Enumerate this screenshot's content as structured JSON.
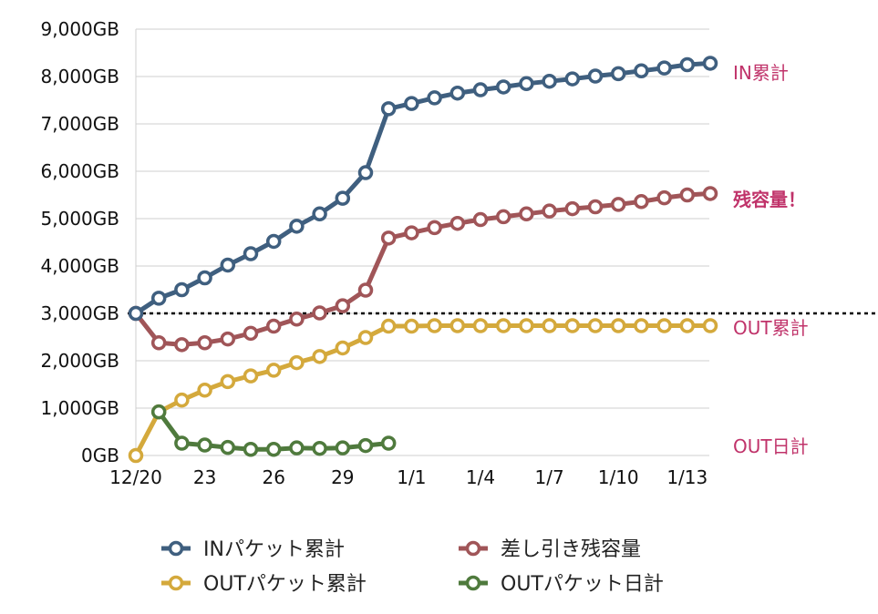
{
  "chart_data": {
    "type": "line",
    "y_tick_labels": [
      "0GB",
      "1,000GB",
      "2,000GB",
      "3,000GB",
      "4,000GB",
      "5,000GB",
      "6,000GB",
      "7,000GB",
      "8,000GB",
      "9,000GB"
    ],
    "ylim": [
      0,
      9000
    ],
    "x_tick_labels": [
      {
        "label": "12/20",
        "index": 0
      },
      {
        "label": "23",
        "index": 3
      },
      {
        "label": "26",
        "index": 6
      },
      {
        "label": "29",
        "index": 9
      },
      {
        "label": "1/1",
        "index": 12
      },
      {
        "label": "1/4",
        "index": 15
      },
      {
        "label": "1/7",
        "index": 18
      },
      {
        "label": "1/10",
        "index": 21
      },
      {
        "label": "1/13",
        "index": 24
      }
    ],
    "x_range": [
      0,
      25
    ],
    "grid": true,
    "reference_line": {
      "value": 3000,
      "style": "dotted"
    },
    "series": [
      {
        "name": "INパケット累計",
        "color": "#3f5f7f",
        "end_label": "IN累計",
        "end_label_color": "#c0336a",
        "values": [
          3000,
          3320,
          3500,
          3750,
          4020,
          4260,
          4520,
          4840,
          5100,
          5430,
          5970,
          7320,
          7430,
          7550,
          7650,
          7720,
          7780,
          7850,
          7900,
          7950,
          8010,
          8060,
          8120,
          8180,
          8250,
          8280
        ]
      },
      {
        "name": "差し引き残容量",
        "color": "#a05558",
        "end_label": "残容量！",
        "end_label_color": "#c0336a",
        "values": [
          3000,
          2380,
          2340,
          2380,
          2460,
          2580,
          2730,
          2880,
          3010,
          3160,
          3490,
          4590,
          4700,
          4810,
          4900,
          4980,
          5040,
          5100,
          5160,
          5210,
          5250,
          5300,
          5360,
          5440,
          5500,
          5530
        ]
      },
      {
        "name": "OUTパケット累計",
        "color": "#d4a93c",
        "end_label": "OUT累計",
        "end_label_color": "#c0336a",
        "values": [
          0,
          920,
          1170,
          1380,
          1560,
          1680,
          1800,
          1960,
          2090,
          2270,
          2490,
          2730,
          2730,
          2740,
          2740,
          2740,
          2740,
          2740,
          2740,
          2740,
          2740,
          2740,
          2740,
          2740,
          2740,
          2740
        ]
      },
      {
        "name": "OUTパケット日計",
        "color": "#4f7a3d",
        "end_label": "OUT日計",
        "end_label_color": "#c0336a",
        "values": [
          null,
          920,
          260,
          220,
          170,
          130,
          130,
          160,
          150,
          160,
          210,
          260
        ]
      }
    ],
    "legend": {
      "position": "bottom"
    }
  }
}
